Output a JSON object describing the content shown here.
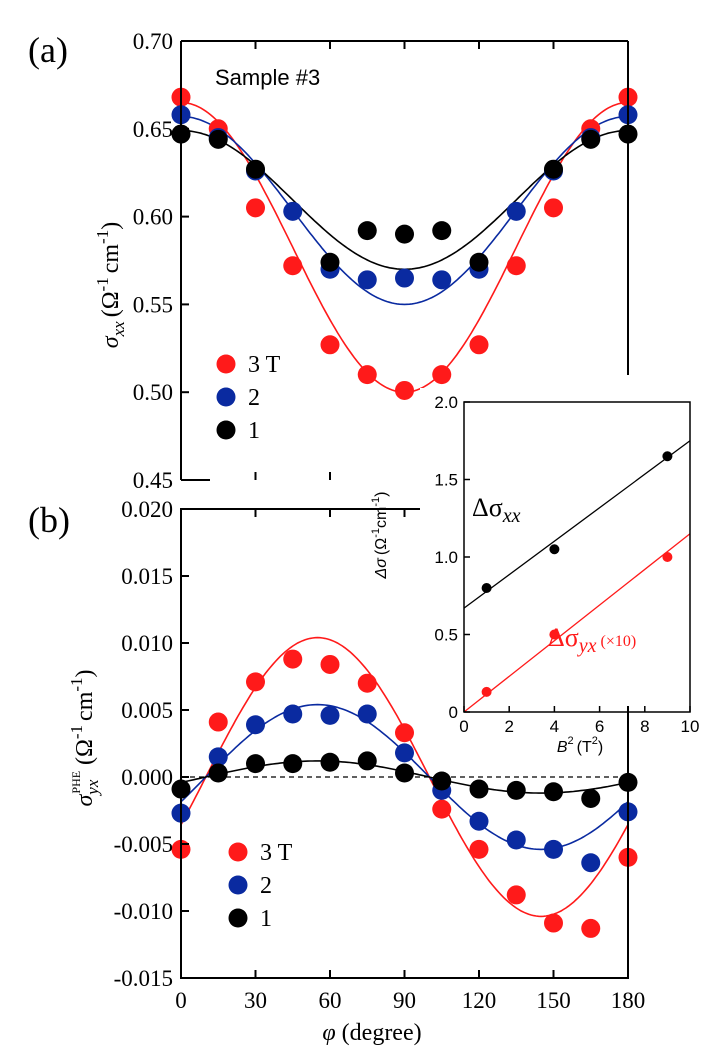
{
  "colors": {
    "3T": "#ff1a1a",
    "2T": "#0a2aa0",
    "1T": "#000000"
  },
  "chart_data": [
    {
      "id": "a",
      "type": "scatter",
      "panel_label": "(a)",
      "annotation": "Sample #3",
      "ylabel_symbol": "σ",
      "ylabel_sub": "xx",
      "ylabel_unit": "(Ω",
      "ylabel_sup1": "-1",
      "ylabel_unit2": "cm",
      "ylabel_sup2": "-1",
      "ylabel_close": ")",
      "ylim": [
        0.45,
        0.7
      ],
      "yticks": [
        0.45,
        0.5,
        0.55,
        0.6,
        0.65,
        0.7
      ],
      "ytick_labels": [
        "0.45",
        "0.50",
        "0.55",
        "0.60",
        "0.65",
        "0.70"
      ],
      "x": [
        0,
        15,
        30,
        45,
        60,
        75,
        90,
        105,
        120,
        135,
        150,
        165,
        180
      ],
      "series": [
        {
          "name": "3 T",
          "color_key": "3T",
          "values": [
            0.668,
            0.65,
            0.605,
            0.572,
            0.527,
            0.51,
            0.501,
            0.51,
            0.527,
            0.572,
            0.605,
            0.65,
            0.668
          ],
          "fit": {
            "mean": 0.5825,
            "amp": 0.0825
          }
        },
        {
          "name": "2",
          "color_key": "2T",
          "values": [
            0.658,
            0.645,
            0.626,
            0.603,
            0.57,
            0.564,
            0.565,
            0.564,
            0.57,
            0.603,
            0.626,
            0.645,
            0.658
          ],
          "fit": {
            "mean": 0.6035,
            "amp": 0.0535
          }
        },
        {
          "name": "1",
          "color_key": "1T",
          "values": [
            0.647,
            0.644,
            0.627,
            0.574,
            0.592,
            0.59,
            0.592,
            0.574,
            0.627,
            0.644,
            0.647
          ],
          "x_override": [
            0,
            15,
            30,
            60,
            75,
            90,
            105,
            120,
            150,
            165,
            180
          ],
          "fit": {
            "mean": 0.6095,
            "amp": 0.0395
          }
        }
      ],
      "legend": [
        "3 T",
        "2",
        "1"
      ]
    },
    {
      "id": "b",
      "type": "scatter",
      "panel_label": "(b)",
      "ylabel_symbol": "σ",
      "ylabel_sub": "yx",
      "ylabel_sup": "PHE",
      "ylabel_unit": "(Ω",
      "ylabel_sup1": "-1",
      "ylabel_unit2": "cm",
      "ylabel_sup2": "-1",
      "ylabel_close": ")",
      "xlabel_symbol": "φ",
      "xlabel_rest": " (degree)",
      "ylim": [
        -0.015,
        0.02
      ],
      "yticks": [
        -0.015,
        -0.01,
        -0.005,
        0.0,
        0.005,
        0.01,
        0.015,
        0.02
      ],
      "ytick_labels": [
        "-0.015",
        "-0.010",
        "-0.005",
        "0.000",
        "0.005",
        "0.010",
        "0.015",
        "0.020"
      ],
      "xlim": [
        0,
        180
      ],
      "xticks": [
        0,
        30,
        60,
        90,
        120,
        150,
        180
      ],
      "xtick_labels": [
        "0",
        "30",
        "60",
        "90",
        "120",
        "150",
        "180"
      ],
      "x": [
        0,
        15,
        30,
        45,
        60,
        75,
        90,
        105,
        120,
        135,
        150,
        165,
        180
      ],
      "series": [
        {
          "name": "3 T",
          "color_key": "3T",
          "values": [
            -0.0054,
            0.0041,
            0.0071,
            0.0088,
            0.0084,
            0.007,
            0.0033,
            -0.0024,
            -0.0054,
            -0.0088,
            -0.0109,
            -0.0113,
            -0.006
          ],
          "fit": {
            "amp": 0.0104
          }
        },
        {
          "name": "2",
          "color_key": "2T",
          "values": [
            -0.0027,
            0.0015,
            0.0039,
            0.0047,
            0.0046,
            0.0047,
            0.0018,
            -0.001,
            -0.0033,
            -0.0047,
            -0.0054,
            -0.0064,
            -0.0026
          ],
          "fit": {
            "amp": 0.0054
          }
        },
        {
          "name": "1",
          "color_key": "1T",
          "values": [
            -0.0009,
            0.0003,
            0.001,
            0.001,
            0.0011,
            0.0012,
            0.0003,
            -0.0003,
            -0.0009,
            -0.001,
            -0.0011,
            -0.0016,
            -0.0004
          ],
          "fit": {
            "amp": 0.0012
          }
        }
      ],
      "legend": [
        "3 T",
        "2",
        "1"
      ]
    },
    {
      "id": "inset",
      "type": "scatter",
      "xlabel_symbol": "B",
      "xlabel_sup": "2",
      "xlabel_unit": "(T",
      "xlabel_unit_sup": "2",
      "xlabel_close": ")",
      "ylabel_symbol": "Δσ",
      "ylabel_unit": "(Ω",
      "ylabel_sup1": "-1",
      "ylabel_unit2": "cm",
      "ylabel_sup2": "-1",
      "ylabel_close": ")",
      "xlim": [
        0,
        10
      ],
      "ylim": [
        0,
        2.0
      ],
      "xticks": [
        0,
        2,
        4,
        6,
        8,
        10
      ],
      "xtick_labels": [
        "0",
        "2",
        "4",
        "6",
        "8",
        "10"
      ],
      "yticks": [
        0,
        0.5,
        1.0,
        1.5,
        2.0
      ],
      "ytick_labels": [
        "0",
        "0.5",
        "1.0",
        "1.5",
        "2.0"
      ],
      "series": [
        {
          "name": "Δσxx",
          "color_key": "1T",
          "x": [
            1,
            4,
            9
          ],
          "values": [
            0.8,
            1.05,
            1.65
          ],
          "fit": {
            "intercept": 0.67,
            "slope": 0.108
          }
        },
        {
          "name": "Δσyx (×10)",
          "color_key": "3T",
          "x": [
            1,
            4,
            9
          ],
          "values": [
            0.13,
            0.5,
            1.0
          ],
          "fit": {
            "intercept": 0.0,
            "slope": 0.115
          }
        }
      ],
      "label_xx_main": "Δσ",
      "label_xx_sub": "xx",
      "label_yx_main": "Δσ",
      "label_yx_sub": "yx",
      "label_yx_extra": "(×10)"
    }
  ]
}
